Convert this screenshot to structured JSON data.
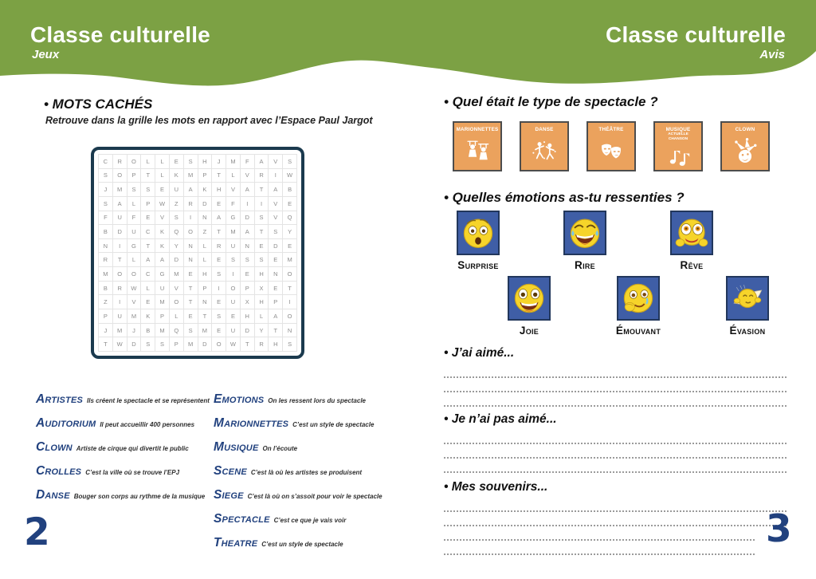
{
  "left_page": {
    "header_title": "Classe culturelle",
    "header_subtitle": "Jeux",
    "section_title": "• MOTS CACHÉS",
    "section_subtitle": "Retrouve dans la grille les mots en rapport avec l’Espace Paul Jargot",
    "word_search_rows": [
      "CROLLESHJMFAVS",
      "SOPTLKMPTLVRIW",
      "JMSSEUAKHVATAB",
      "SALPWZRDEFIIVE",
      "FUFEVSINAGDSVQ",
      "BDUCKQOZTMATSY",
      "NIGTKYNLRUNEDE",
      "RTLAADNLESSSEM",
      "MOOCGMEHSIEHNO",
      "BRWLUVTPIOPXET",
      "ZIVEMOTNEUXHPI",
      "PUMKPLETSEHLAO",
      "JMJBMQSMEUDYTN",
      "TWDSSPMDOWTRHS"
    ],
    "vocabulary_left": [
      {
        "word": "Artistes",
        "desc": "Ils créent le spectacle et se représentent"
      },
      {
        "word": "Auditorium",
        "desc": "Il peut accueillir 400 personnes"
      },
      {
        "word": "Clown",
        "desc": "Artiste de cirque qui divertit le public"
      },
      {
        "word": "Crolles",
        "desc": "C’est la ville où se trouve l’EPJ"
      },
      {
        "word": "Danse",
        "desc": "Bouger son corps au rythme de la musique"
      }
    ],
    "vocabulary_right": [
      {
        "word": "Emotions",
        "desc": "On les ressent lors du spectacle"
      },
      {
        "word": "Marionnettes",
        "desc": "C’est un style de spectacle"
      },
      {
        "word": "Musique",
        "desc": "On l’écoute"
      },
      {
        "word": "Scene",
        "desc": "C’est là où les artistes se produisent"
      },
      {
        "word": "Siege",
        "desc": "C’est là où on s’assoit pour voir le spectacle"
      },
      {
        "word": "Spectacle",
        "desc": "C’est ce que je vais voir"
      },
      {
        "word": "Theatre",
        "desc": "C’est un style de spectacle"
      }
    ],
    "page_number": "2"
  },
  "right_page": {
    "header_title": "Classe culturelle",
    "header_subtitle": "Avis",
    "question1": {
      "title": "• Quel était le type de spectacle ?",
      "options": [
        {
          "label": "MARIONNETTES",
          "icon": "marionnettes-icon"
        },
        {
          "label": "DANSE",
          "icon": "dance-icon"
        },
        {
          "label": "THÉÂTRE",
          "icon": "theatre-masks-icon"
        },
        {
          "label": "MUSIQUE",
          "sublabels": [
            "ACTUELLE",
            "CHANSON"
          ],
          "icon": "music-notes-icon"
        },
        {
          "label": "CLOWN",
          "icon": "clown-icon"
        }
      ]
    },
    "question2": {
      "title": "• Quelles émotions as-tu ressenties ?",
      "row1": [
        {
          "label": "Surprise",
          "icon": "surprise-emoji-icon"
        },
        {
          "label": "Rire",
          "icon": "laugh-emoji-icon"
        },
        {
          "label": "Rêve",
          "icon": "dream-emoji-icon"
        }
      ],
      "row2": [
        {
          "label": "Joie",
          "icon": "joy-emoji-icon"
        },
        {
          "label": "Émouvant",
          "icon": "moved-emoji-icon"
        },
        {
          "label": "Évasion",
          "icon": "escape-emoji-icon"
        }
      ]
    },
    "answer_sections": [
      {
        "id": "aime",
        "title": "• J’ai aimé...",
        "lines": 3
      },
      {
        "id": "pasaime",
        "title": "• Je n’ai pas aimé...",
        "lines": 3
      },
      {
        "id": "souvenirs",
        "title": "• Mes souvenirs...",
        "lines": 4
      }
    ],
    "page_number": "3"
  },
  "colors": {
    "header_green": "#7ca144",
    "vocab_blue": "#21417e",
    "grid_border_navy": "#1b3a4e",
    "tile_orange": "#eba25d",
    "emotion_tile_blue": "#3f5ea6",
    "smiley_yellow": "#f6d42a",
    "page_number_blue": "#21417e"
  }
}
